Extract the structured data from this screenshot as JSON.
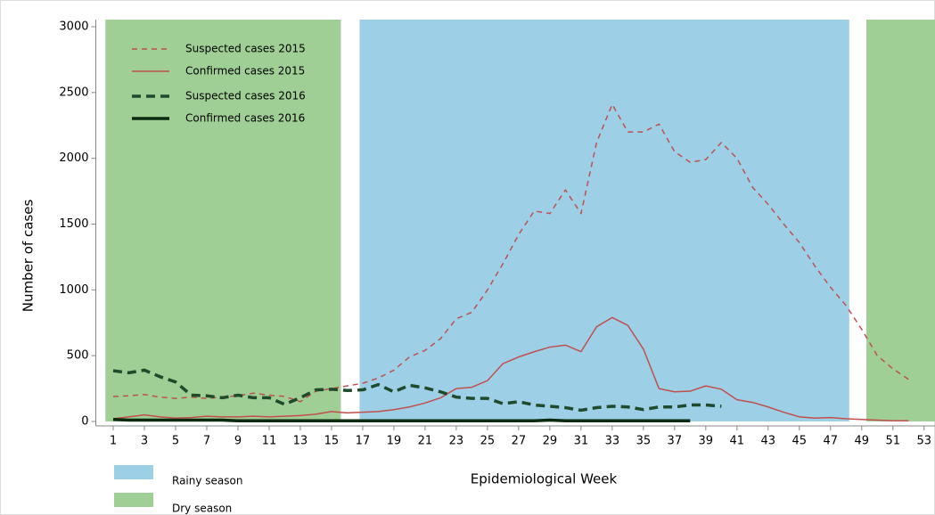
{
  "chart_data": {
    "type": "line",
    "x_label": "Epidemiological Week",
    "y_label": "Number of cases",
    "xlim": [
      0,
      53.7
    ],
    "xticks": [
      1,
      3,
      5,
      7,
      9,
      11,
      13,
      15,
      17,
      19,
      21,
      23,
      25,
      27,
      29,
      31,
      33,
      35,
      37,
      39,
      41,
      43,
      45,
      47,
      49,
      51,
      53
    ],
    "ylim": [
      0,
      3000
    ],
    "yticks": [
      0,
      500,
      1000,
      1500,
      2000,
      2500,
      3000
    ],
    "seasons": [
      {
        "name": "Rainy season",
        "color": "#9dd0e6",
        "spans": [
          [
            16.8,
            48.2
          ]
        ]
      },
      {
        "name": "Dry season",
        "color": "#9fcf94",
        "spans": [
          [
            0.5,
            15.6
          ],
          [
            49.3,
            53.7
          ]
        ]
      }
    ],
    "series": [
      {
        "name": "Suspected cases 2015",
        "color": "#c0504d",
        "style": "dashed",
        "weight": "thin",
        "x": [
          1,
          2,
          3,
          4,
          5,
          6,
          7,
          8,
          9,
          10,
          11,
          12,
          13,
          14,
          15,
          16,
          17,
          18,
          19,
          20,
          21,
          22,
          23,
          24,
          25,
          26,
          27,
          28,
          29,
          30,
          31,
          32,
          33,
          34,
          35,
          36,
          37,
          38,
          39,
          40,
          41,
          42,
          43,
          44,
          45,
          46,
          47,
          48,
          49,
          50,
          51,
          52
        ],
        "values": [
          190,
          195,
          205,
          185,
          175,
          185,
          175,
          185,
          195,
          215,
          200,
          190,
          150,
          230,
          250,
          270,
          290,
          330,
          390,
          490,
          540,
          630,
          780,
          830,
          1000,
          1200,
          1420,
          1600,
          1580,
          1760,
          1580,
          2120,
          2410,
          2200,
          2200,
          2260,
          2050,
          1970,
          1990,
          2120,
          2000,
          1780,
          1650,
          1500,
          1360,
          1180,
          1020,
          880,
          700,
          500,
          400,
          320
        ]
      },
      {
        "name": "Confirmed cases 2015",
        "color": "#c0504d",
        "style": "solid",
        "weight": "thin",
        "x": [
          1,
          2,
          3,
          4,
          5,
          6,
          7,
          8,
          9,
          10,
          11,
          12,
          13,
          14,
          15,
          16,
          17,
          18,
          19,
          20,
          21,
          22,
          23,
          24,
          25,
          26,
          27,
          28,
          29,
          30,
          31,
          32,
          33,
          34,
          35,
          36,
          37,
          38,
          39,
          40,
          41,
          42,
          43,
          44,
          45,
          46,
          47,
          48,
          49,
          50,
          51,
          52
        ],
        "values": [
          20,
          35,
          50,
          35,
          25,
          30,
          40,
          35,
          35,
          40,
          35,
          40,
          45,
          55,
          75,
          65,
          70,
          75,
          90,
          110,
          140,
          180,
          250,
          260,
          310,
          440,
          490,
          530,
          565,
          580,
          530,
          720,
          790,
          730,
          550,
          250,
          225,
          230,
          270,
          245,
          165,
          145,
          110,
          70,
          35,
          25,
          30,
          20,
          15,
          10,
          5,
          5
        ]
      },
      {
        "name": "Suspected cases 2016",
        "color": "#1f4a2c",
        "style": "dashed",
        "weight": "bold",
        "x": [
          1,
          2,
          3,
          4,
          5,
          6,
          7,
          8,
          9,
          10,
          11,
          12,
          13,
          14,
          15,
          16,
          17,
          18,
          19,
          20,
          21,
          22,
          23,
          24,
          25,
          26,
          27,
          28,
          29,
          30,
          31,
          32,
          33,
          34,
          35,
          36,
          37,
          38,
          39,
          40
        ],
        "values": [
          385,
          370,
          390,
          340,
          300,
          200,
          195,
          180,
          200,
          180,
          180,
          130,
          180,
          240,
          245,
          235,
          240,
          280,
          225,
          275,
          255,
          225,
          185,
          175,
          175,
          135,
          150,
          125,
          115,
          105,
          85,
          105,
          115,
          110,
          90,
          110,
          110,
          125,
          125,
          115
        ]
      },
      {
        "name": "Confirmed cases 2016",
        "color": "#0b2a10",
        "style": "solid",
        "weight": "bold",
        "x": [
          1,
          2,
          3,
          4,
          5,
          6,
          7,
          8,
          9,
          10,
          11,
          12,
          13,
          14,
          15,
          16,
          17,
          18,
          19,
          20,
          21,
          22,
          23,
          24,
          25,
          26,
          27,
          28,
          29,
          30,
          31,
          32,
          33,
          34,
          35,
          36,
          37,
          38
        ],
        "values": [
          15,
          10,
          10,
          10,
          10,
          10,
          10,
          10,
          5,
          5,
          5,
          5,
          5,
          5,
          5,
          5,
          5,
          5,
          5,
          5,
          5,
          5,
          5,
          5,
          5,
          5,
          5,
          5,
          10,
          5,
          5,
          5,
          5,
          5,
          5,
          5,
          5,
          5
        ]
      }
    ]
  }
}
